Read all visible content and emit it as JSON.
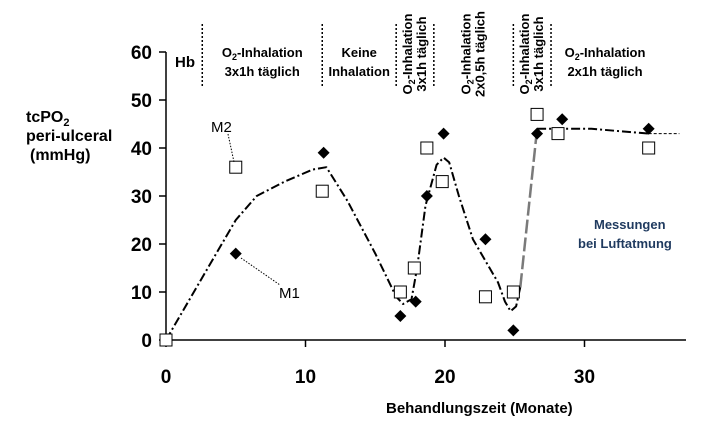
{
  "chart_data": {
    "type": "scatter",
    "title": "",
    "xlabel": "Behandlungszeit (Monate)",
    "ylabel_lines": [
      "tcPO2",
      "peri-ulceral",
      "(mmHg)"
    ],
    "xlim": [
      0,
      37
    ],
    "ylim": [
      0,
      60
    ],
    "xticks": [
      0,
      10,
      20,
      30
    ],
    "yticks": [
      0,
      10,
      20,
      30,
      40,
      50,
      60
    ],
    "grid": false,
    "series": [
      {
        "name": "M1",
        "marker": "filled-diamond",
        "color": "#000000",
        "points": [
          [
            0,
            0
          ],
          [
            5,
            18
          ],
          [
            11.3,
            39
          ],
          [
            16.8,
            5
          ],
          [
            17.9,
            8
          ],
          [
            18.7,
            30
          ],
          [
            19.9,
            43
          ],
          [
            22.9,
            21
          ],
          [
            24.9,
            2
          ],
          [
            26.6,
            43
          ],
          [
            28.4,
            46
          ],
          [
            34.6,
            44
          ]
        ]
      },
      {
        "name": "M2",
        "marker": "open-square",
        "color": "#000000",
        "points": [
          [
            0,
            0
          ],
          [
            5,
            36
          ],
          [
            11.2,
            31
          ],
          [
            16.8,
            10
          ],
          [
            17.8,
            15
          ],
          [
            18.7,
            40
          ],
          [
            19.8,
            33
          ],
          [
            22.9,
            9
          ],
          [
            24.9,
            10
          ],
          [
            26.6,
            47
          ],
          [
            28.1,
            43
          ],
          [
            34.6,
            40
          ]
        ]
      }
    ],
    "trend_points": [
      [
        0,
        0
      ],
      [
        3,
        15
      ],
      [
        5,
        25
      ],
      [
        6.5,
        30
      ],
      [
        8.5,
        33
      ],
      [
        10.5,
        35.5
      ],
      [
        11.5,
        36
      ],
      [
        13,
        29
      ],
      [
        15,
        18
      ],
      [
        16.5,
        9
      ],
      [
        17,
        7.5
      ],
      [
        17.6,
        8.5
      ],
      [
        18,
        15
      ],
      [
        18.6,
        28
      ],
      [
        19.4,
        36.5
      ],
      [
        19.9,
        38
      ],
      [
        20.3,
        37
      ],
      [
        21,
        30
      ],
      [
        22,
        21
      ],
      [
        23,
        16
      ],
      [
        23.8,
        12
      ],
      [
        24.3,
        8
      ],
      [
        24.7,
        6
      ],
      [
        25.1,
        7
      ],
      [
        25.4,
        11
      ]
    ],
    "recovery_segment": [
      [
        25.4,
        11
      ],
      [
        26.6,
        44
      ]
    ],
    "plateau_points": [
      [
        26.6,
        44
      ],
      [
        30.5,
        44
      ],
      [
        34.6,
        43
      ]
    ],
    "plateau_tail": [
      [
        34.6,
        43
      ],
      [
        36.8,
        43
      ]
    ],
    "phases": [
      {
        "x_start": 0,
        "x_end": 2.6,
        "lines": [
          "Hb"
        ]
      },
      {
        "x_start": 2.6,
        "x_end": 11.2,
        "lines": [
          "O2-Inhalation",
          "3x1h täglich"
        ]
      },
      {
        "x_start": 11.2,
        "x_end": 16.5,
        "lines": [
          "Keine",
          "Inhalation"
        ]
      },
      {
        "x_start": 16.5,
        "x_end": 19.2,
        "lines": [
          "O2-Inhalation",
          "3x1h täglich"
        ],
        "vertical": true
      },
      {
        "x_start": 19.2,
        "x_end": 24.9,
        "lines": [
          "O2-Inhalation",
          "2x0,5h täglich"
        ],
        "vertical": true
      },
      {
        "x_start": 24.9,
        "x_end": 27.6,
        "lines": [
          "O2-Inhalation",
          "3x1h  täglich"
        ],
        "vertical": true
      },
      {
        "x_start": 27.6,
        "x_end": 37,
        "lines": [
          "O2-Inhalation",
          "2x1h  täglich"
        ]
      }
    ],
    "annotations": [
      "Messungen",
      "bei Luftatmung"
    ],
    "series_labels": {
      "M1": "M1",
      "M2": "M2"
    }
  }
}
